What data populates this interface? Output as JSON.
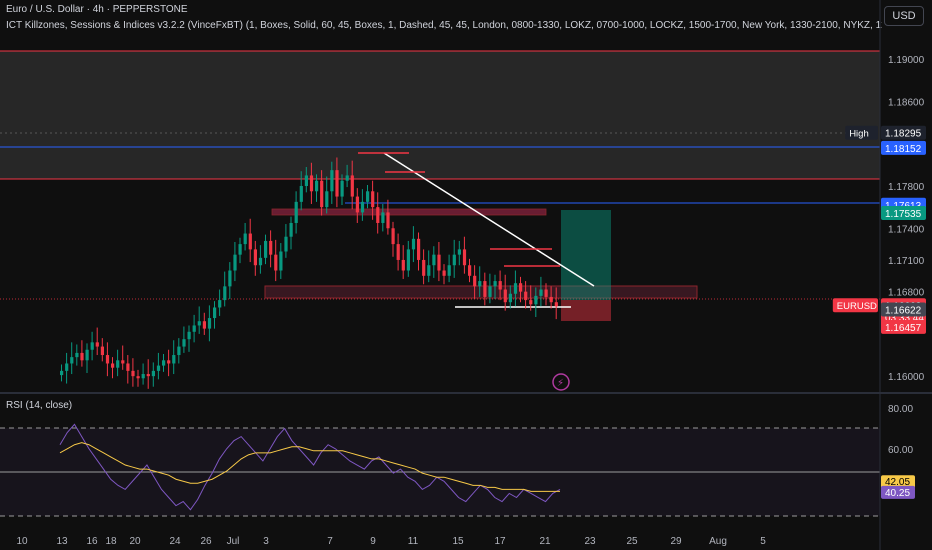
{
  "header": {
    "symbol_line": "Euro / U.S. Dollar · 4h · PEPPERSTONE",
    "indicator_line": "ICT Killzones, Sessions & Indices v3.2.2 (VinceFxBT) (1, Boxes, Solid, 60, 45, Boxes, 1, Dashed, 45, 45, London, 0800-1330, LOKZ, 0700-1000, LOCKZ, 1500-1700, New York, 1330-2100, NYKZ, 1200-1500, As",
    "currency_button": "USD"
  },
  "chart_data": [
    {
      "type": "candlestick",
      "title": "Euro / U.S. Dollar · 4h · PEPPERSTONE",
      "ylim": [
        1.1585,
        1.1922
      ],
      "y_ticks": [
        "1.19000",
        "1.18600",
        "1.17800",
        "1.17400",
        "1.17100",
        "1.16800",
        "1.16000"
      ],
      "x_ticks": [
        "10",
        "13",
        "16",
        "18",
        "20",
        "24",
        "26",
        "Jul",
        "3",
        "7",
        "9",
        "11",
        "15",
        "17",
        "21",
        "23",
        "25",
        "29",
        "Aug",
        "5"
      ],
      "price_labels": [
        {
          "text": "High",
          "value": "1.18295",
          "price": 1.18295,
          "color": "#1e222d"
        },
        {
          "text": "",
          "value": "1.18152",
          "price": 1.18152,
          "color": "#2962ff"
        },
        {
          "text": "",
          "value": "1.17613",
          "price": 1.17613,
          "color": "#2962ff"
        },
        {
          "text": "",
          "value": "1.17535",
          "price": 1.17535,
          "color": "#089981"
        },
        {
          "text": "EURUSD",
          "value": "1.16662",
          "sub": "03:33:44",
          "price": 1.16662,
          "color": "#f23645"
        },
        {
          "text": "",
          "value": "1.16622",
          "price": 1.16622,
          "color": "#434651"
        },
        {
          "text": "",
          "value": "1.16457",
          "price": 1.16457,
          "color": "#f23645"
        }
      ],
      "closes": [
        1.1605,
        1.1612,
        1.1618,
        1.1622,
        1.1615,
        1.1625,
        1.1632,
        1.1628,
        1.162,
        1.1612,
        1.1608,
        1.1615,
        1.1612,
        1.1605,
        1.16,
        1.1598,
        1.1602,
        1.16,
        1.1605,
        1.161,
        1.1615,
        1.1612,
        1.162,
        1.1628,
        1.1635,
        1.1642,
        1.1648,
        1.1652,
        1.1645,
        1.1655,
        1.1665,
        1.1672,
        1.1685,
        1.17,
        1.1715,
        1.1725,
        1.1735,
        1.172,
        1.1705,
        1.1712,
        1.1728,
        1.1715,
        1.17,
        1.1718,
        1.1732,
        1.1745,
        1.1765,
        1.178,
        1.179,
        1.1775,
        1.1785,
        1.176,
        1.1775,
        1.1795,
        1.177,
        1.1785,
        1.179,
        1.177,
        1.1755,
        1.1765,
        1.1775,
        1.176,
        1.1745,
        1.1755,
        1.174,
        1.1725,
        1.171,
        1.17,
        1.172,
        1.173,
        1.171,
        1.1695,
        1.1705,
        1.1715,
        1.17,
        1.1695,
        1.1705,
        1.1715,
        1.172,
        1.1705,
        1.1695,
        1.1685,
        1.169,
        1.1675,
        1.1685,
        1.169,
        1.1682,
        1.167,
        1.1678,
        1.1688,
        1.168,
        1.1672,
        1.1668,
        1.1676,
        1.1682,
        1.1675,
        1.167,
        1.1666
      ]
    },
    {
      "type": "line",
      "title": "RSI (14, close)",
      "ylim": [
        20,
        85
      ],
      "y_ticks": [
        "80.00",
        "60.00"
      ],
      "levels": [
        70,
        50,
        30
      ],
      "series": [
        {
          "name": "",
          "color": "#7e57c2",
          "values": [
            62,
            68,
            72,
            66,
            60,
            55,
            50,
            45,
            42,
            40,
            44,
            48,
            52,
            46,
            40,
            36,
            32,
            34,
            30,
            35,
            42,
            48,
            55,
            60,
            64,
            66,
            62,
            58,
            54,
            60,
            66,
            70,
            64,
            60,
            56,
            52,
            58,
            62,
            60,
            57,
            54,
            52,
            50,
            54,
            56,
            52,
            48,
            50,
            46,
            44,
            40,
            42,
            46,
            44,
            40,
            36,
            34,
            38,
            42,
            40,
            36,
            34,
            38,
            36,
            40,
            38,
            36,
            34,
            38,
            40
          ]
        },
        {
          "name": "",
          "color": "#f7c948",
          "values": [
            58,
            60,
            62,
            63,
            62,
            60,
            58,
            56,
            54,
            52,
            51,
            50,
            50,
            49,
            48,
            47,
            45,
            44,
            43,
            43,
            44,
            45,
            47,
            49,
            52,
            55,
            57,
            58,
            58,
            58,
            59,
            60,
            61,
            61,
            60,
            59,
            59,
            59,
            59,
            59,
            58,
            57,
            56,
            55,
            55,
            54,
            53,
            52,
            51,
            50,
            48,
            47,
            46,
            46,
            45,
            44,
            43,
            42,
            42,
            41,
            41,
            40,
            40,
            40,
            40,
            39,
            39,
            39,
            39,
            39
          ]
        }
      ],
      "value_labels": [
        {
          "value": "42.05",
          "color": "#f7c948"
        },
        {
          "value": "40.25",
          "color": "#7e57c2"
        }
      ]
    }
  ]
}
